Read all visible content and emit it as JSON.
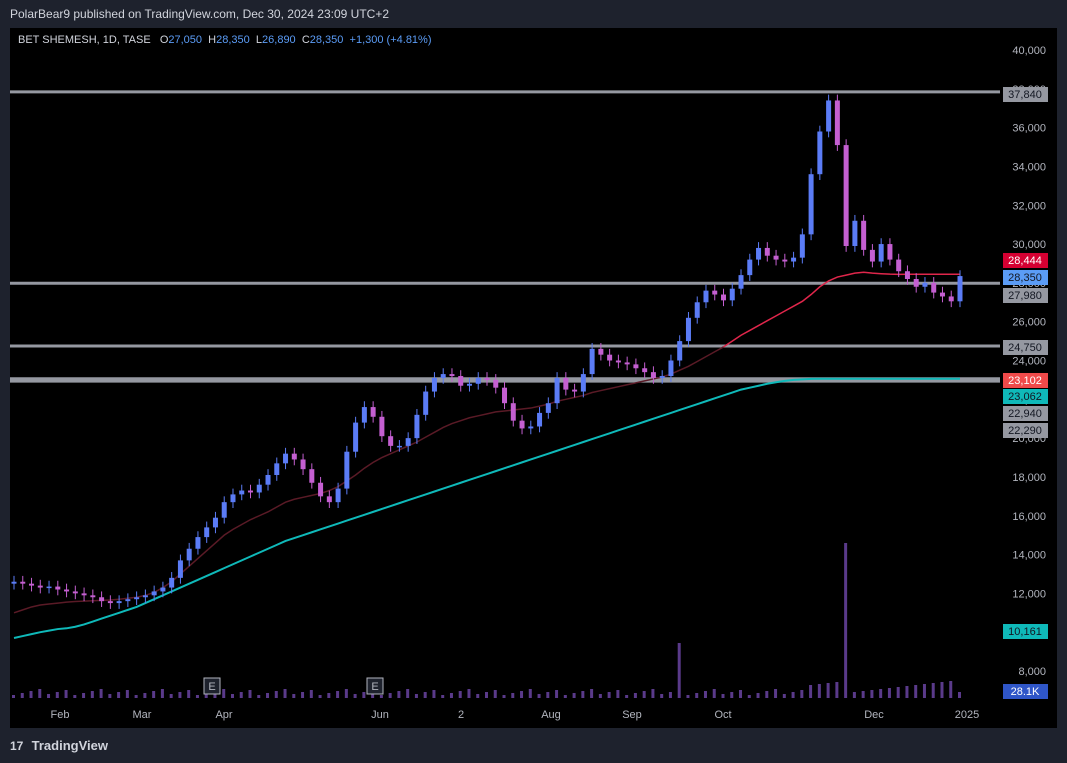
{
  "header": {
    "published": "PolarBear9 published on TradingView.com, Dec 30, 2024 23:09 UTC+2"
  },
  "legend": {
    "symbol": "BET SHEMESH, 1D, TASE",
    "o_label": "O",
    "o_value": "27,050",
    "h_label": "H",
    "h_value": "28,350",
    "l_label": "L",
    "l_value": "26,890",
    "c_label": "C",
    "c_value": "28,350",
    "change": "+1,300 (+4.81%)"
  },
  "footer": {
    "brand": "TradingView",
    "logo_glyph": "17"
  },
  "colors": {
    "up": "#5b7cf6",
    "down": "#c45fd1",
    "ma_short": "#e0264b",
    "ma_long": "#0fb9b9",
    "level": "#9598a1",
    "grid": "#000000",
    "volume": "#5a3a8a"
  },
  "chart_data": {
    "type": "candlestick",
    "title": "BET SHEMESH, 1D, TASE",
    "ylim": [
      7000,
      41000
    ],
    "y_ticks": [
      "40,000",
      "38,000",
      "36,000",
      "34,000",
      "32,000",
      "30,000",
      "28,000",
      "26,000",
      "24,000",
      "22,000",
      "20,000",
      "18,000",
      "16,000",
      "14,000",
      "12,000",
      "10,000",
      "8,000"
    ],
    "x_ticks": [
      "Feb",
      "Mar",
      "Apr",
      "Jun",
      "2",
      "Aug",
      "Sep",
      "Oct",
      "Dec",
      "2025"
    ],
    "earnings_markers": [
      "E",
      "E"
    ],
    "horizontal_levels": [
      37840,
      27980,
      24750,
      23062,
      22940
    ],
    "price_tags": [
      {
        "label": "37,840",
        "kind": "level"
      },
      {
        "label": "28,444",
        "kind": "ma_short"
      },
      {
        "label": "28,350",
        "kind": "last"
      },
      {
        "label": "27,980",
        "kind": "level"
      },
      {
        "label": "24,750",
        "kind": "level"
      },
      {
        "label": "23,102",
        "kind": "ma_red"
      },
      {
        "label": "23,062",
        "kind": "ma_long"
      },
      {
        "label": "22,940",
        "kind": "level"
      },
      {
        "label": "22,290",
        "kind": "level"
      },
      {
        "label": "10,161",
        "kind": "ma_long_old"
      },
      {
        "label": "28.1K",
        "kind": "volume"
      }
    ],
    "close_series": [
      12600,
      12500,
      12400,
      12300,
      12350,
      12200,
      12100,
      12000,
      11900,
      11800,
      11600,
      11500,
      11600,
      11700,
      11800,
      11900,
      12100,
      12300,
      12800,
      13700,
      14300,
      14900,
      15400,
      15900,
      16700,
      17100,
      17300,
      17200,
      17600,
      18100,
      18700,
      19200,
      18900,
      18400,
      17700,
      17000,
      16700,
      17400,
      19300,
      20800,
      21600,
      21100,
      20100,
      19600,
      19600,
      20000,
      21200,
      22400,
      23100,
      23300,
      23200,
      22700,
      22800,
      23100,
      23000,
      22600,
      21800,
      20900,
      20500,
      20600,
      21300,
      21800,
      23100,
      22500,
      22400,
      23300,
      24600,
      24300,
      24000,
      23900,
      23800,
      23600,
      23400,
      23100,
      23200,
      24000,
      25000,
      26200,
      27000,
      27600,
      27400,
      27100,
      27700,
      28400,
      29200,
      29800,
      29400,
      29200,
      29100,
      29300,
      30500,
      33600,
      35800,
      37400,
      35100,
      29900,
      31200,
      29700,
      29100,
      30000,
      29200,
      28600,
      28200,
      27800,
      28000,
      27500,
      27300,
      27050,
      28350
    ],
    "ma_short_series": [
      11000,
      11150,
      11300,
      11400,
      11450,
      11500,
      11550,
      11580,
      11600,
      11620,
      11640,
      11660,
      11700,
      11750,
      11800,
      11900,
      12050,
      12300,
      12600,
      13000,
      13400,
      13800,
      14200,
      14600,
      15000,
      15300,
      15550,
      15800,
      16000,
      16200,
      16450,
      16700,
      16850,
      16950,
      17050,
      17150,
      17300,
      17500,
      17800,
      18100,
      18450,
      18750,
      19000,
      19200,
      19400,
      19600,
      19800,
      20050,
      20300,
      20550,
      20750,
      20900,
      21050,
      21150,
      21250,
      21350,
      21400,
      21450,
      21500,
      21550,
      21650,
      21750,
      21900,
      22000,
      22100,
      22200,
      22350,
      22450,
      22550,
      22650,
      22750,
      22850,
      22950,
      23050,
      23150,
      23300,
      23500,
      23700,
      23950,
      24200,
      24450,
      24700,
      25000,
      25300,
      25550,
      25800,
      26050,
      26300,
      26550,
      26800,
      27050,
      27400,
      27800,
      28100,
      28300,
      28400,
      28500,
      28550,
      28500,
      28470,
      28450,
      28440,
      28444,
      28444,
      28444,
      28444,
      28444,
      28444,
      28444
    ],
    "ma_long_series": [
      9700,
      9800,
      9900,
      10000,
      10080,
      10161,
      10200,
      10280,
      10400,
      10550,
      10700,
      10850,
      11000,
      11150,
      11300,
      11500,
      11700,
      11900,
      12100,
      12300,
      12500,
      12700,
      12900,
      13100,
      13300,
      13500,
      13700,
      13900,
      14100,
      14300,
      14500,
      14700,
      14850,
      15000,
      15150,
      15300,
      15450,
      15600,
      15750,
      15900,
      16050,
      16200,
      16350,
      16500,
      16650,
      16800,
      16950,
      17100,
      17250,
      17400,
      17550,
      17700,
      17850,
      18000,
      18150,
      18300,
      18450,
      18600,
      18750,
      18900,
      19050,
      19200,
      19350,
      19500,
      19650,
      19800,
      19950,
      20100,
      20250,
      20400,
      20550,
      20700,
      20850,
      21000,
      21150,
      21300,
      21450,
      21600,
      21750,
      21900,
      22050,
      22200,
      22350,
      22500,
      22600,
      22700,
      22800,
      22880,
      22950,
      23000,
      23030,
      23050,
      23062,
      23062,
      23062,
      23062,
      23062,
      23062,
      23062,
      23062,
      23062,
      23062,
      23062,
      23062,
      23062,
      23062,
      23062,
      23062,
      23062
    ]
  }
}
